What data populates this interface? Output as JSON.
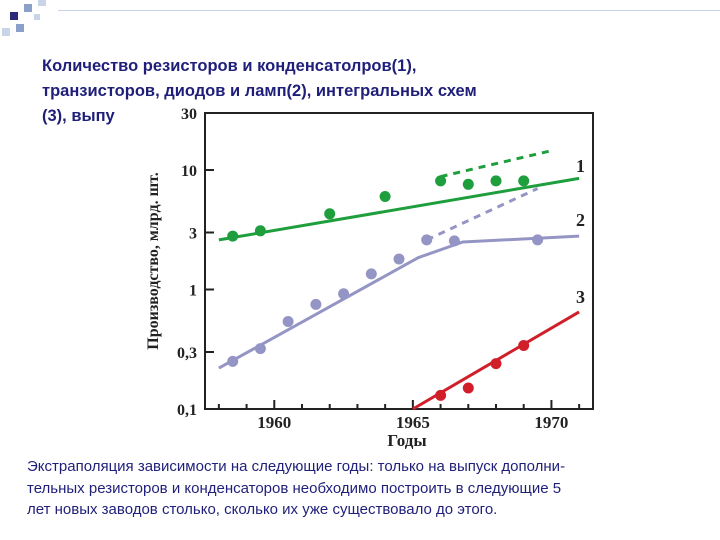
{
  "slide": {
    "title": "Количество резисторов и конденсатолров(1),\nтранзисторов, диодов и ламп(2), интегральных схем\n(3), выпу",
    "caption": "Экстраполяция зависимости на следующие годы: только на выпуск дополни-\nтельных резисторов и конденсаторов необходимо построить в следующие 5\nлет новых заводов столько, сколько их уже существовало до этого.",
    "decor_colors": [
      "#2b2b7a",
      "#8aa0c8",
      "#c8d4e8"
    ]
  },
  "chart_data": {
    "type": "line",
    "title": "",
    "xlabel": "Годы",
    "ylabel": "Производство, млрд. шт.",
    "y_scale": "log",
    "xlim": [
      1957.5,
      1971.5
    ],
    "ylim": [
      0.1,
      30
    ],
    "x_ticks": [
      1960,
      1965,
      1970
    ],
    "x_tick_labels": [
      "1960",
      "1965",
      "1970"
    ],
    "y_ticks": [
      0.1,
      0.3,
      1,
      3,
      10,
      30
    ],
    "y_tick_labels": [
      "0,1",
      "0,3",
      "1",
      "3",
      "10",
      "30"
    ],
    "grid": false,
    "series": [
      {
        "name": "1",
        "color": "#1e9e3c",
        "points": {
          "x": [
            1958.5,
            1959.5,
            1962,
            1964,
            1966,
            1967,
            1968,
            1969
          ],
          "y": [
            2.8,
            3.1,
            4.3,
            6.0,
            8.1,
            7.6,
            8.1,
            8.1
          ]
        },
        "fit_line": {
          "x": [
            1958,
            1971
          ],
          "y": [
            2.6,
            8.5
          ]
        },
        "extrapolation": {
          "x": [
            1966,
            1970
          ],
          "y": [
            8.8,
            14.5
          ]
        }
      },
      {
        "name": "2",
        "color": "#9595c5",
        "points": {
          "x": [
            1958.5,
            1959.5,
            1960.5,
            1961.5,
            1962.5,
            1963.5,
            1964.5,
            1965.5,
            1966.5,
            1969.5
          ],
          "y": [
            0.25,
            0.32,
            0.54,
            0.75,
            0.92,
            1.35,
            1.8,
            2.6,
            2.55,
            2.6
          ]
        },
        "fit_line": {
          "x": [
            1958,
            1965.2,
            1966.8,
            1971
          ],
          "y": [
            0.22,
            1.85,
            2.5,
            2.8
          ]
        },
        "extrapolation": {
          "x": [
            1965.5,
            1969.5
          ],
          "y": [
            2.6,
            7.0
          ]
        }
      },
      {
        "name": "3",
        "color": "#d11f2a",
        "points": {
          "x": [
            1966,
            1967,
            1968,
            1969
          ],
          "y": [
            0.13,
            0.15,
            0.24,
            0.34
          ]
        },
        "fit_line": {
          "x": [
            1965,
            1971
          ],
          "y": [
            0.1,
            0.65
          ]
        },
        "extrapolation": null
      }
    ]
  }
}
